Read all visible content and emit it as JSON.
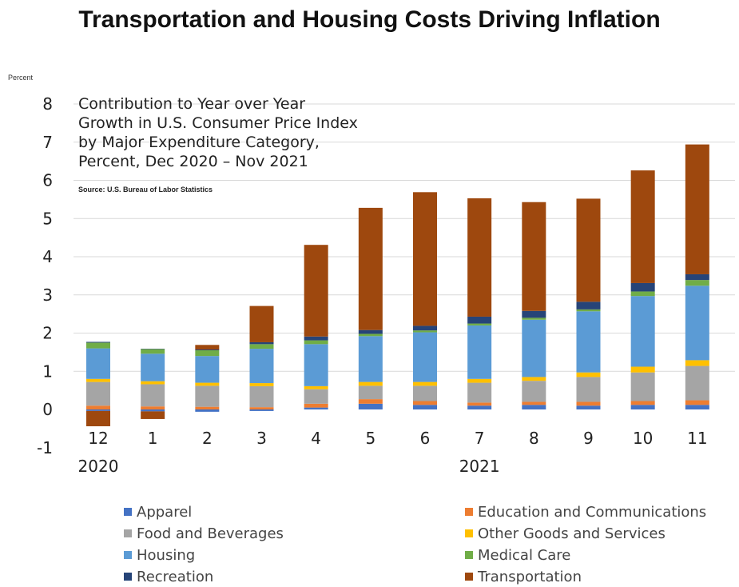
{
  "title": "Transportation and Housing Costs Driving Inflation",
  "chart_data": {
    "type": "bar",
    "stacked": true,
    "ylabel": "Percent",
    "ylim": [
      -1,
      8
    ],
    "y_ticks": [
      -1,
      0,
      1,
      2,
      3,
      4,
      5,
      6,
      7,
      8
    ],
    "grid": true,
    "categories": [
      "12",
      "1",
      "2",
      "3",
      "4",
      "5",
      "6",
      "7",
      "8",
      "9",
      "10",
      "11"
    ],
    "year_labels": [
      {
        "text": "2020",
        "at_category": "12"
      },
      {
        "text": "2021",
        "at_category": "7"
      }
    ],
    "annotation": [
      "Contribution to Year over Year",
      "Growth in U.S. Consumer Price Index",
      "by Major Expenditure Category,",
      "Percent, Dec 2020 – Nov 2021"
    ],
    "source": "Source:  U.S. Bureau of Labor Statistics",
    "legend_position": "bottom",
    "series": [
      {
        "name": "Apparel",
        "color": "#4472C4",
        "values": [
          -0.04,
          -0.05,
          -0.06,
          -0.04,
          0.05,
          0.15,
          0.12,
          0.1,
          0.12,
          0.1,
          0.12,
          0.12
        ]
      },
      {
        "name": "Education and Communications",
        "color": "#ED7D31",
        "values": [
          0.1,
          0.08,
          0.07,
          0.06,
          0.1,
          0.12,
          0.1,
          0.08,
          0.08,
          0.1,
          0.1,
          0.12
        ]
      },
      {
        "name": "Food and Beverages",
        "color": "#A5A5A5",
        "values": [
          0.62,
          0.58,
          0.55,
          0.55,
          0.38,
          0.35,
          0.4,
          0.52,
          0.55,
          0.65,
          0.75,
          0.9
        ]
      },
      {
        "name": "Other Goods and Services",
        "color": "#FFC000",
        "values": [
          0.08,
          0.08,
          0.08,
          0.08,
          0.08,
          0.1,
          0.1,
          0.1,
          0.1,
          0.12,
          0.15,
          0.15
        ]
      },
      {
        "name": "Housing",
        "color": "#5B9BD5",
        "values": [
          0.8,
          0.72,
          0.7,
          0.9,
          1.1,
          1.2,
          1.3,
          1.4,
          1.5,
          1.6,
          1.85,
          1.95
        ]
      },
      {
        "name": "Medical Care",
        "color": "#70AD47",
        "values": [
          0.15,
          0.12,
          0.15,
          0.12,
          0.1,
          0.06,
          0.05,
          0.05,
          0.05,
          0.05,
          0.12,
          0.15
        ]
      },
      {
        "name": "Recreation",
        "color": "#264478",
        "values": [
          0.02,
          0.01,
          0.02,
          0.05,
          0.1,
          0.1,
          0.12,
          0.18,
          0.18,
          0.2,
          0.22,
          0.15
        ]
      },
      {
        "name": "Transportation",
        "color": "#9E480E",
        "values": [
          -0.4,
          -0.2,
          0.12,
          0.95,
          2.4,
          3.2,
          3.5,
          3.1,
          2.85,
          2.7,
          2.95,
          3.4
        ]
      }
    ]
  }
}
